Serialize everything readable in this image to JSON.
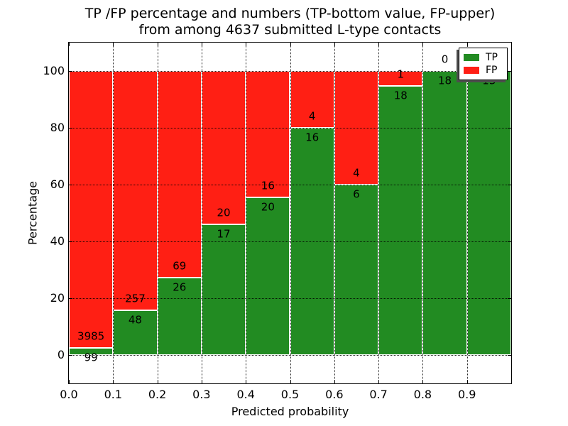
{
  "figure": {
    "title_line1": "TP /FP percentage and numbers (TP-bottom value, FP-upper)",
    "title_line2": "from among 4637 submitted L-type contacts"
  },
  "chart_data": {
    "type": "bar",
    "subtype": "stacked-percentage-histogram",
    "title": "TP /FP percentage and numbers (TP-bottom value, FP-upper)\nfrom among 4637 submitted L-type contacts",
    "total_contacts": 4637,
    "xlabel": "Predicted probability",
    "ylabel": "Percentage",
    "xlim": [
      0.0,
      1.0
    ],
    "ylim": [
      -10,
      110
    ],
    "bin_width": 0.1,
    "grid": true,
    "grid_style": "dotted",
    "categories": [
      "0.0-0.1",
      "0.1-0.2",
      "0.2-0.3",
      "0.3-0.4",
      "0.4-0.5",
      "0.5-0.6",
      "0.6-0.7",
      "0.7-0.8",
      "0.8-0.9",
      "0.9-1.0"
    ],
    "x_ticks": [
      "0.0",
      "0.1",
      "0.2",
      "0.3",
      "0.4",
      "0.5",
      "0.6",
      "0.7",
      "0.8",
      "0.9"
    ],
    "y_ticks": [
      "0",
      "20",
      "40",
      "60",
      "80",
      "100"
    ],
    "series": [
      {
        "name": "TP",
        "color": "#228B22",
        "values": [
          99,
          48,
          26,
          17,
          20,
          16,
          6,
          18,
          18,
          13
        ]
      },
      {
        "name": "FP",
        "color": "#ff1f14",
        "values": [
          3985,
          257,
          69,
          20,
          16,
          4,
          4,
          1,
          0,
          0
        ]
      }
    ],
    "tp_percent": [
      2.42,
      15.74,
      27.37,
      45.95,
      55.56,
      80.0,
      60.0,
      94.74,
      100.0,
      100.0
    ],
    "legend": {
      "position": "upper right",
      "entries": [
        {
          "label": "TP",
          "color": "#228B22"
        },
        {
          "label": "FP",
          "color": "#ff1f14"
        }
      ]
    },
    "notes": "Labels per bar: FP count just above TP/FP boundary, TP count just below it. Last bar FP label hidden behind legend."
  }
}
